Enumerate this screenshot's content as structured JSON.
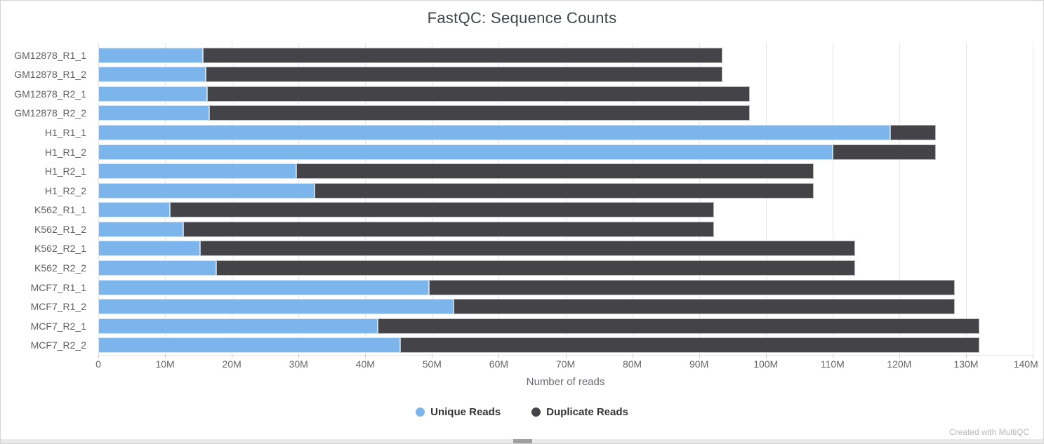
{
  "title": "FastQC: Sequence Counts",
  "watermark": "Created with MultiQC",
  "colors": {
    "unique": "#7cb5ec",
    "duplicate": "#434348",
    "grid": "#e6e6e6",
    "axis_label": "#666666",
    "category_label": "#606060"
  },
  "chart_data": {
    "type": "bar",
    "orientation": "horizontal",
    "stacked": true,
    "title": "FastQC: Sequence Counts",
    "xlabel": "Number of reads",
    "xlim_reads": [
      0,
      140000000
    ],
    "x_tick_labels": [
      "0",
      "10M",
      "20M",
      "30M",
      "40M",
      "50M",
      "60M",
      "70M",
      "80M",
      "90M",
      "100M",
      "110M",
      "120M",
      "130M",
      "140M"
    ],
    "grid": true,
    "legend_position": "bottom",
    "categories": [
      "GM12878_R1_1",
      "GM12878_R1_2",
      "GM12878_R2_1",
      "GM12878_R2_2",
      "H1_R1_1",
      "H1_R1_2",
      "H1_R2_1",
      "H1_R2_2",
      "K562_R1_1",
      "K562_R1_2",
      "K562_R2_1",
      "K562_R2_2",
      "MCF7_R1_1",
      "MCF7_R1_2",
      "MCF7_R2_1",
      "MCF7_R2_2"
    ],
    "series": [
      {
        "name": "Unique Reads",
        "color": "#7cb5ec",
        "values_millions": [
          15.7,
          16.1,
          16.3,
          16.6,
          118.7,
          110.0,
          29.7,
          32.4,
          10.7,
          12.7,
          15.3,
          17.7,
          49.5,
          53.2,
          41.9,
          45.2
        ]
      },
      {
        "name": "Duplicate Reads",
        "color": "#434348",
        "values_millions": [
          77.8,
          77.4,
          81.3,
          81.0,
          6.8,
          15.5,
          77.5,
          74.8,
          81.5,
          79.5,
          98.1,
          95.7,
          78.8,
          75.1,
          90.1,
          86.8
        ]
      }
    ],
    "totals_millions": [
      93.5,
      93.5,
      97.6,
      97.6,
      125.5,
      125.5,
      107.2,
      107.2,
      92.2,
      92.2,
      113.4,
      113.4,
      128.3,
      128.3,
      132.0,
      132.0
    ],
    "axis_max_millions": 140
  }
}
